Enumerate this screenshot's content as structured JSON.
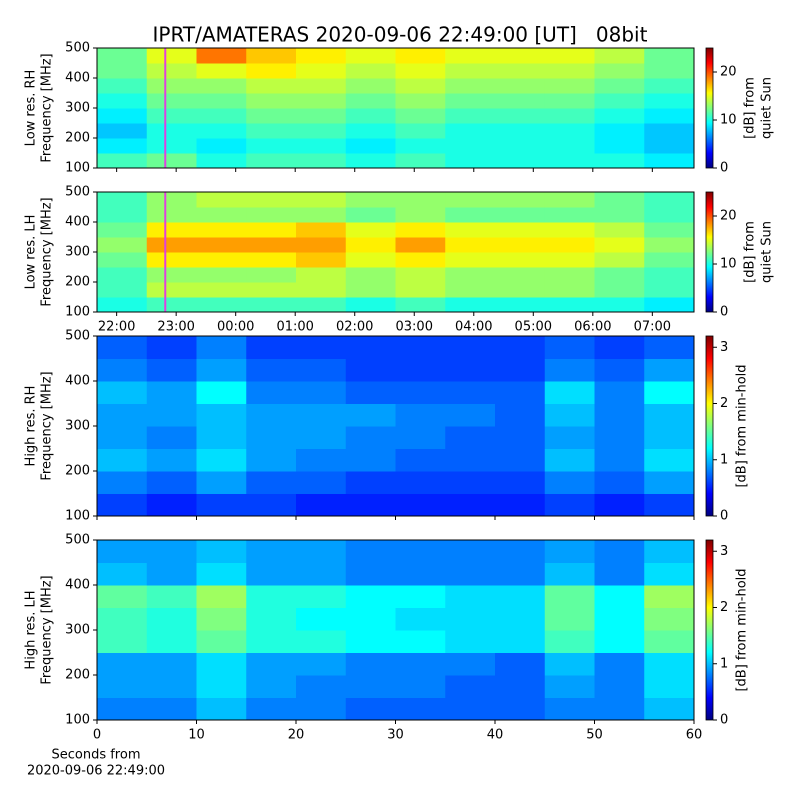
{
  "chart_data": [
    {
      "type": "heatmap",
      "title": "IPRT/AMATERAS 2020-09-06 22:49:00 [UT]   08bit",
      "ylabel": [
        "Low res. RH",
        "Frequency [MHz]"
      ],
      "ylim": [
        100,
        500
      ],
      "yticks": [
        100,
        200,
        300,
        400,
        500
      ],
      "xlim": [
        21.67,
        31.7
      ],
      "colormap": "jet",
      "zlim": [
        0,
        25
      ],
      "zticks": [
        0,
        10,
        20
      ],
      "colorbar_label": [
        "[dB] from",
        "quiet Sun"
      ],
      "marker_x": 22.817,
      "marker_color": "#e040e0",
      "z": [
        [
          11,
          12,
          10,
          11,
          11,
          10,
          11,
          10,
          10,
          10,
          10,
          9
        ],
        [
          9,
          10,
          9,
          10,
          10,
          9,
          10,
          10,
          10,
          10,
          9,
          8
        ],
        [
          8,
          10,
          10,
          11,
          11,
          10,
          11,
          10,
          10,
          10,
          9,
          8
        ],
        [
          9,
          11,
          11,
          12,
          12,
          11,
          12,
          11,
          11,
          11,
          10,
          9
        ],
        [
          10,
          12,
          12,
          13,
          13,
          12,
          13,
          12,
          12,
          12,
          11,
          10
        ],
        [
          11,
          13,
          13,
          14,
          14,
          13,
          14,
          13,
          13,
          13,
          12,
          11
        ],
        [
          12,
          14,
          15,
          16,
          15,
          14,
          15,
          14,
          14,
          14,
          13,
          12
        ],
        [
          12,
          15,
          19,
          17,
          16,
          15,
          16,
          15,
          15,
          15,
          14,
          12
        ]
      ]
    },
    {
      "type": "heatmap",
      "ylabel": [
        "Low res. LH",
        "Frequency [MHz]"
      ],
      "ylim": [
        100,
        500
      ],
      "yticks": [
        100,
        200,
        300,
        400,
        500
      ],
      "xlim": [
        21.67,
        31.7
      ],
      "xticks": [
        {
          "value": 22,
          "label": "22:00"
        },
        {
          "value": 23,
          "label": "23:00"
        },
        {
          "value": 24,
          "label": "00:00"
        },
        {
          "value": 25,
          "label": "01:00"
        },
        {
          "value": 26,
          "label": "02:00"
        },
        {
          "value": 27,
          "label": "03:00"
        },
        {
          "value": 28,
          "label": "04:00"
        },
        {
          "value": 29,
          "label": "05:00"
        },
        {
          "value": 30,
          "label": "06:00"
        },
        {
          "value": 31,
          "label": "07:00"
        }
      ],
      "colormap": "jet",
      "zlim": [
        0,
        25
      ],
      "zticks": [
        0,
        10,
        20
      ],
      "colorbar_label": [
        "[dB] from",
        "quiet Sun"
      ],
      "marker_x": 22.817,
      "marker_color": "#e040e0",
      "z": [
        [
          10,
          11,
          11,
          11,
          11,
          10,
          11,
          10,
          10,
          10,
          10,
          9
        ],
        [
          11,
          14,
          14,
          14,
          14,
          13,
          14,
          13,
          13,
          13,
          12,
          11
        ],
        [
          11,
          13,
          13,
          13,
          14,
          13,
          14,
          13,
          13,
          13,
          12,
          11
        ],
        [
          12,
          16,
          16,
          16,
          17,
          15,
          16,
          15,
          15,
          15,
          14,
          12
        ],
        [
          13,
          18,
          18,
          18,
          18,
          16,
          18,
          16,
          16,
          16,
          15,
          13
        ],
        [
          12,
          16,
          16,
          16,
          17,
          15,
          16,
          15,
          15,
          15,
          14,
          12
        ],
        [
          11,
          13,
          13,
          13,
          13,
          12,
          13,
          12,
          12,
          12,
          12,
          11
        ],
        [
          11,
          13,
          14,
          14,
          14,
          13,
          13,
          13,
          13,
          13,
          12,
          11
        ]
      ]
    },
    {
      "type": "heatmap",
      "ylabel": [
        "High res. RH",
        "Frequency [MHz]"
      ],
      "ylim": [
        100,
        500
      ],
      "yticks": [
        100,
        200,
        300,
        400,
        500
      ],
      "xlim": [
        0,
        60
      ],
      "colormap": "jet",
      "zlim": [
        0,
        3.2
      ],
      "zticks": [
        0,
        1,
        2,
        3
      ],
      "colorbar_label": [
        "[dB] from min-hold"
      ],
      "z": [
        [
          0.6,
          0.5,
          0.6,
          0.6,
          0.5,
          0.5,
          0.5,
          0.5,
          0.5,
          0.6,
          0.5,
          0.6
        ],
        [
          0.8,
          0.7,
          0.9,
          0.7,
          0.7,
          0.6,
          0.6,
          0.6,
          0.6,
          0.8,
          0.7,
          0.9
        ],
        [
          1.0,
          0.9,
          1.1,
          0.9,
          0.8,
          0.8,
          0.7,
          0.7,
          0.7,
          1.0,
          0.8,
          1.1
        ],
        [
          0.9,
          0.8,
          1.0,
          0.9,
          0.9,
          0.8,
          0.8,
          0.7,
          0.7,
          0.9,
          0.8,
          1.0
        ],
        [
          0.9,
          0.9,
          1.0,
          0.9,
          0.9,
          0.9,
          0.8,
          0.8,
          0.7,
          1.0,
          0.8,
          1.0
        ],
        [
          1.0,
          0.9,
          1.2,
          0.8,
          0.8,
          0.7,
          0.7,
          0.7,
          0.7,
          1.1,
          0.8,
          1.2
        ],
        [
          0.8,
          0.7,
          0.9,
          0.7,
          0.7,
          0.6,
          0.6,
          0.6,
          0.6,
          0.8,
          0.7,
          0.9
        ],
        [
          0.7,
          0.6,
          0.8,
          0.6,
          0.6,
          0.6,
          0.6,
          0.6,
          0.6,
          0.7,
          0.6,
          0.7
        ]
      ]
    },
    {
      "type": "heatmap",
      "ylabel": [
        "High res. LH",
        "Frequency [MHz]"
      ],
      "ylim": [
        100,
        500
      ],
      "yticks": [
        100,
        200,
        300,
        400,
        500
      ],
      "xlim": [
        0,
        60
      ],
      "xticks": [
        0,
        10,
        20,
        30,
        40,
        50,
        60
      ],
      "xlabel": [
        "Seconds from",
        "2020-09-06 22:49:00"
      ],
      "colormap": "jet",
      "zlim": [
        0,
        3.2
      ],
      "zticks": [
        0,
        1,
        2,
        3
      ],
      "colorbar_label": [
        "[dB] from min-hold"
      ],
      "z": [
        [
          0.8,
          0.8,
          1.0,
          0.8,
          0.8,
          0.7,
          0.7,
          0.7,
          0.7,
          0.8,
          0.8,
          1.0
        ],
        [
          0.9,
          0.9,
          1.1,
          0.9,
          0.8,
          0.8,
          0.8,
          0.7,
          0.7,
          0.9,
          0.8,
          1.1
        ],
        [
          0.9,
          0.9,
          1.1,
          0.9,
          0.9,
          0.8,
          0.8,
          0.8,
          0.7,
          1.0,
          0.8,
          1.1
        ],
        [
          1.4,
          1.3,
          1.5,
          1.3,
          1.3,
          1.2,
          1.2,
          1.1,
          1.1,
          1.4,
          1.2,
          1.5
        ],
        [
          1.4,
          1.3,
          1.6,
          1.3,
          1.2,
          1.2,
          1.1,
          1.1,
          1.1,
          1.5,
          1.2,
          1.6
        ],
        [
          1.5,
          1.4,
          1.7,
          1.3,
          1.3,
          1.2,
          1.2,
          1.1,
          1.1,
          1.5,
          1.2,
          1.7
        ],
        [
          1.0,
          0.9,
          1.1,
          0.9,
          0.9,
          0.8,
          0.8,
          0.8,
          0.8,
          1.0,
          0.8,
          1.1
        ],
        [
          0.9,
          0.9,
          1.0,
          0.9,
          0.9,
          0.8,
          0.8,
          0.8,
          0.8,
          0.9,
          0.8,
          1.0
        ]
      ]
    }
  ]
}
